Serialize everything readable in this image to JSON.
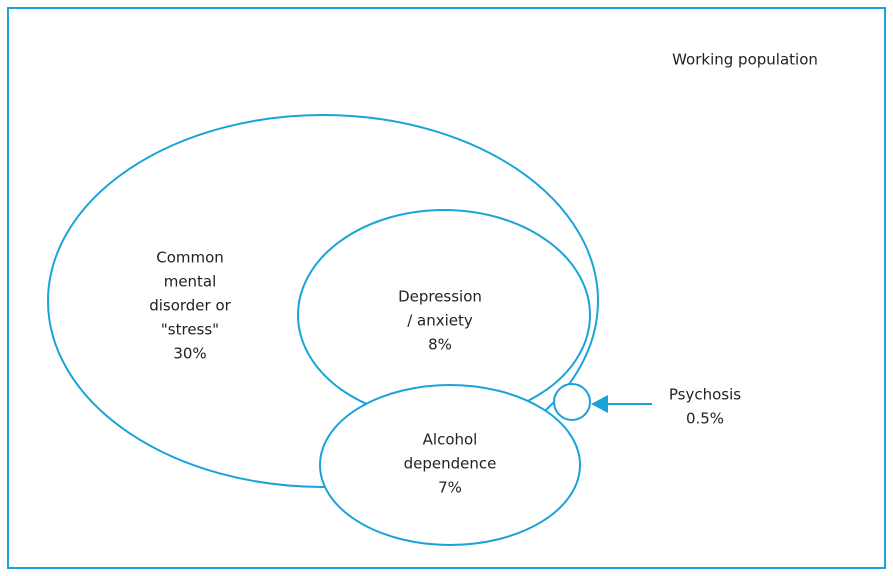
{
  "title": "Working population",
  "nodes": [
    {
      "label": [
        "Common",
        "mental",
        "disorder or",
        "\"stress\"",
        "30%"
      ]
    },
    {
      "label": [
        "Depression",
        "/ anxiety",
        "8%"
      ]
    },
    {
      "label": [
        "Alcohol",
        "dependence",
        "7%"
      ]
    },
    {
      "label": [
        "Psychosis",
        "0.5%"
      ]
    }
  ]
}
